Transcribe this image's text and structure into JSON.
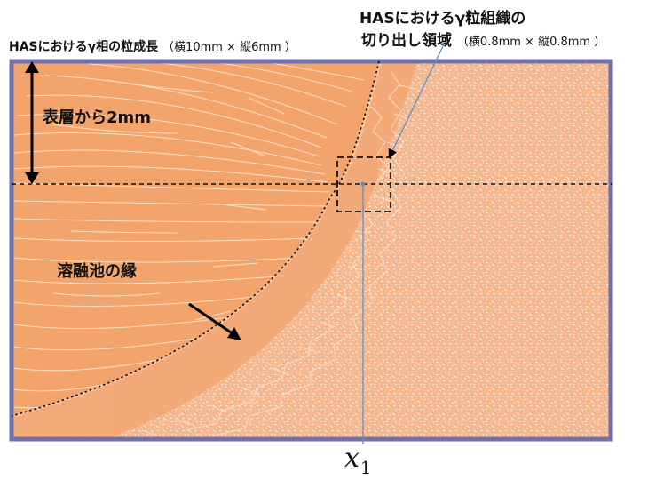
{
  "title": {
    "main": "HASにおけるγ相の粒成長",
    "dims": "（横10mm × 縦6mm ）"
  },
  "crop_region": {
    "line1": "HASにおけるγ粒組織の",
    "line2": "切り出し領域",
    "dims": "（横0.8mm × 縦0.8mm ）"
  },
  "depth_label": "表層から2mm",
  "melt_pool_label": "溶融池の縁",
  "x_marker": {
    "symbol": "x",
    "subscript": "1"
  },
  "colors": {
    "weld": "#f2a46c",
    "haz": "#f4b38a",
    "frame": "#7272a8",
    "guide": "#5b8ed0",
    "grain_line": "#fbe3cc"
  }
}
